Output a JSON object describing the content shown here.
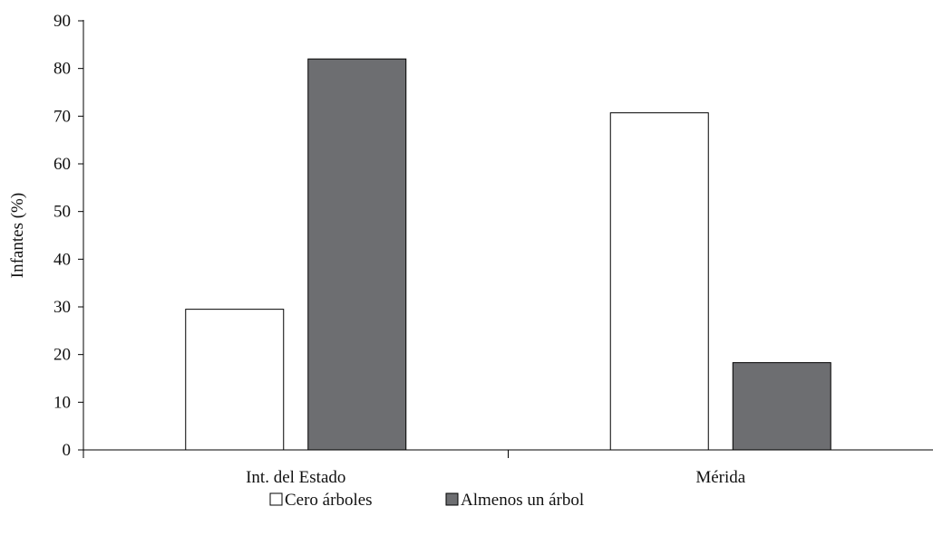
{
  "chart_data": {
    "type": "bar",
    "title": "",
    "xlabel": "",
    "ylabel": "Infantes (%)",
    "ylim": [
      0,
      90
    ],
    "yticks": [
      0,
      10,
      20,
      30,
      40,
      50,
      60,
      70,
      80,
      90
    ],
    "categories": [
      "Int. del Estado",
      "Mérida"
    ],
    "series": [
      {
        "name": "Cero árboles",
        "values": [
          29.5,
          70.7
        ],
        "color": "#ffffff",
        "stroke": "#000000"
      },
      {
        "name": "Almenos un árbol",
        "values": [
          82.0,
          18.3
        ],
        "color": "#6d6e71",
        "stroke": "#000000"
      }
    ],
    "grid": false,
    "legend": "bottom-center"
  }
}
